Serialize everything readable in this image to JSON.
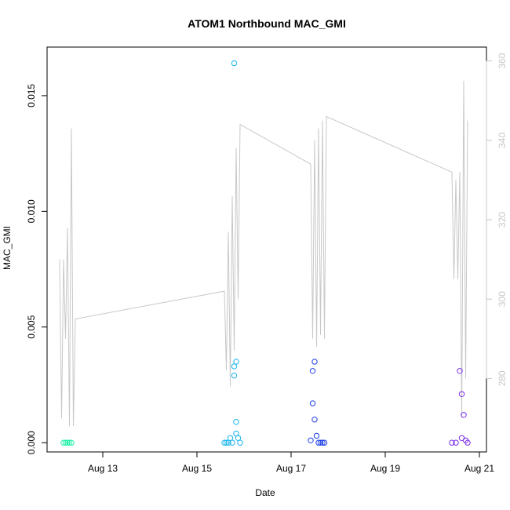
{
  "chart_data": {
    "type": "scatter",
    "title": "ATOM1 Northbound MAC_GMI",
    "xlabel": "Date",
    "ylabel": "MAC_GMI",
    "x_ticks": [
      "Aug 13",
      "Aug 15",
      "Aug 17",
      "Aug 19",
      "Aug 21"
    ],
    "ylim": [
      -0.0004,
      0.0171
    ],
    "y_ticks": [
      "0.000",
      "0.005",
      "0.010",
      "0.015"
    ],
    "y2lim": [
      261.5,
      363.5
    ],
    "y2_ticks": [
      "280",
      "300",
      "320",
      "340",
      "360"
    ],
    "points_color_by_time": true,
    "colors": {
      "aug12": "#1ff0a8",
      "aug15": "#1ab5ee",
      "aug17": "#1f3fe6",
      "aug20": "#7a2ae6",
      "secondary_line": "#c8c8c8"
    },
    "series": [
      {
        "kind": "points",
        "axis": "left",
        "color": "#1ff0a8",
        "x": [
          "2021-08-12T04:00",
          "2021-08-12T05:00",
          "2021-08-12T06:00",
          "2021-08-12T07:00",
          "2021-08-12T08:00"
        ],
        "y": [
          0.0,
          0.0,
          0.0,
          0.0,
          0.0
        ]
      },
      {
        "kind": "points",
        "axis": "left",
        "color": "#1ab5ee",
        "x": [
          "2021-08-15T14:00",
          "2021-08-15T15:00",
          "2021-08-15T16:00",
          "2021-08-15T17:00",
          "2021-08-15T18:00",
          "2021-08-15T19:00",
          "2021-08-15T19:00",
          "2021-08-15T19:00",
          "2021-08-15T20:00",
          "2021-08-15T20:00",
          "2021-08-15T20:00",
          "2021-08-15T21:00",
          "2021-08-15T22:00"
        ],
        "y": [
          0.0,
          0.0,
          0.0,
          0.0002,
          0.0,
          0.0164,
          0.0033,
          0.0029,
          0.0035,
          0.0009,
          0.0004,
          0.0002,
          0.0
        ]
      },
      {
        "kind": "points",
        "axis": "left",
        "color": "#1f3fe6",
        "x": [
          "2021-08-17T10:00",
          "2021-08-17T11:00",
          "2021-08-17T11:00",
          "2021-08-17T12:00",
          "2021-08-17T12:00",
          "2021-08-17T13:00",
          "2021-08-17T14:00",
          "2021-08-17T15:00",
          "2021-08-17T16:00",
          "2021-08-17T17:00"
        ],
        "y": [
          0.0001,
          0.0017,
          0.0031,
          0.0035,
          0.001,
          0.0003,
          0.0,
          0.0,
          0.0,
          0.0
        ]
      },
      {
        "kind": "points",
        "axis": "left",
        "color": "#7a2ae6",
        "x": [
          "2021-08-20T10:00",
          "2021-08-20T12:00",
          "2021-08-20T14:00",
          "2021-08-20T15:00",
          "2021-08-20T15:00",
          "2021-08-20T16:00",
          "2021-08-20T17:00",
          "2021-08-20T18:00"
        ],
        "y": [
          0.0,
          0.0,
          0.0031,
          0.0021,
          0.0002,
          0.0012,
          0.0001,
          0.0
        ]
      },
      {
        "kind": "line",
        "axis": "right",
        "color": "#c8c8c8",
        "x": [
          "2021-08-12T02:00",
          "2021-08-12T03:00",
          "2021-08-12T04:00",
          "2021-08-12T05:00",
          "2021-08-12T06:00",
          "2021-08-12T07:00",
          "2021-08-12T08:00",
          "2021-08-12T09:00",
          "2021-08-12T10:00",
          "2021-08-15T14:00",
          "2021-08-15T15:00",
          "2021-08-15T16:00",
          "2021-08-15T17:00",
          "2021-08-15T18:00",
          "2021-08-15T19:00",
          "2021-08-15T20:00",
          "2021-08-15T21:00",
          "2021-08-15T22:00",
          "2021-08-17T10:00",
          "2021-08-17T11:00",
          "2021-08-17T12:00",
          "2021-08-17T13:00",
          "2021-08-17T14:00",
          "2021-08-17T15:00",
          "2021-08-17T16:00",
          "2021-08-17T17:00",
          "2021-08-17T18:00",
          "2021-08-20T10:00",
          "2021-08-20T11:00",
          "2021-08-20T12:00",
          "2021-08-20T13:00",
          "2021-08-20T14:00",
          "2021-08-20T15:00",
          "2021-08-20T16:00",
          "2021-08-20T17:00",
          "2021-08-20T18:00"
        ],
        "y": [
          310,
          270,
          310,
          290,
          318,
          268,
          343,
          268,
          295,
          302,
          282,
          317,
          278,
          326,
          287,
          338,
          300,
          344,
          334,
          290,
          340,
          288,
          343,
          291,
          345,
          290,
          346,
          332,
          305,
          330,
          305,
          332,
          270,
          355,
          280,
          345
        ]
      }
    ]
  }
}
